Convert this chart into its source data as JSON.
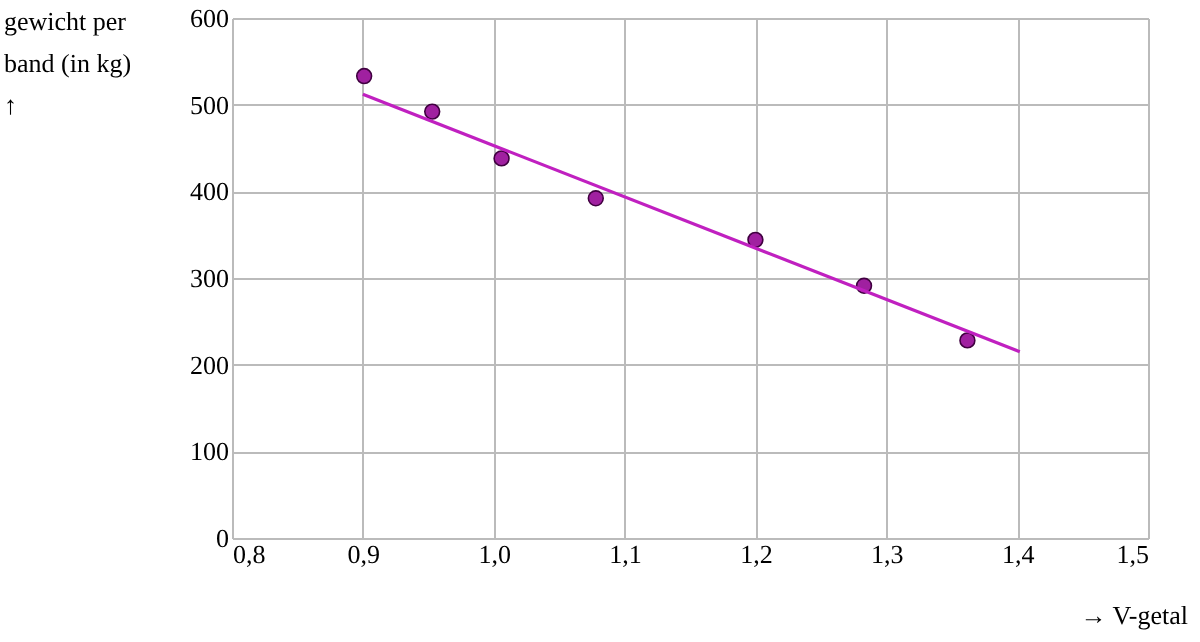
{
  "chart_data": {
    "type": "scatter",
    "xlabel": "→ V-getal",
    "ylabel": "gewicht per\nband (in kg)\n↑",
    "xlim": [
      0.8,
      1.5
    ],
    "ylim": [
      0,
      600
    ],
    "xticks": [
      {
        "value": 0.8,
        "label": "0,8"
      },
      {
        "value": 0.9,
        "label": "0,9"
      },
      {
        "value": 1.0,
        "label": "1,0"
      },
      {
        "value": 1.1,
        "label": "1,1"
      },
      {
        "value": 1.2,
        "label": "1,2"
      },
      {
        "value": 1.3,
        "label": "1,3"
      },
      {
        "value": 1.4,
        "label": "1,4"
      },
      {
        "value": 1.5,
        "label": "1,5"
      }
    ],
    "yticks": [
      0,
      100,
      200,
      300,
      400,
      500,
      600
    ],
    "grid": true,
    "marker": "circle",
    "series": [
      {
        "color": "#a020a0",
        "x": [
          0.901,
          0.953,
          1.006,
          1.078,
          1.2,
          1.283,
          1.362
        ],
        "values": [
          533,
          492,
          438,
          392,
          344,
          291,
          228
        ]
      },
      {
        "type": "line",
        "marker": "none",
        "color": "#c020c0",
        "x": [
          0.9,
          1.402
        ],
        "values": [
          512,
          215
        ]
      }
    ]
  }
}
